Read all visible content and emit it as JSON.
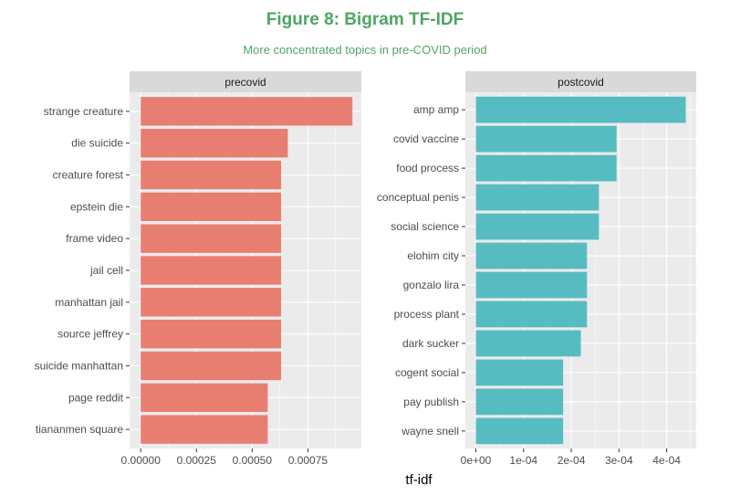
{
  "title": "Figure 8: Bigram TF-IDF",
  "subtitle": "More concentrated topics in pre-COVID period",
  "colors": {
    "title": "#4fa564",
    "panel_bg": "#ebebeb",
    "grid": "#ffffff",
    "strip_bg": "#d9d9d9"
  },
  "chart_data": {
    "type": "bar",
    "orientation": "horizontal",
    "xlabel": "tf-idf",
    "grid": true,
    "panels": [
      {
        "name": "precovid",
        "color": "#e87e72",
        "xlim": [
          -5e-05,
          0.00099
        ],
        "ticks": [
          0,
          0.00025,
          0.0005,
          0.00075
        ],
        "tick_labels": [
          "0.00000",
          "0.00025",
          "0.00050",
          "0.00075"
        ],
        "categories": [
          "strange creature",
          "die suicide",
          "creature forest",
          "epstein die",
          "frame video",
          "jail cell",
          "manhattan jail",
          "source jeffrey",
          "suicide manhattan",
          "page reddit",
          "tiananmen square"
        ],
        "values": [
          0.00095,
          0.00066,
          0.00063,
          0.00063,
          0.00063,
          0.00063,
          0.00063,
          0.00063,
          0.00063,
          0.00057,
          0.00057
        ]
      },
      {
        "name": "postcovid",
        "color": "#56bcc2",
        "xlim": [
          -2.2e-05,
          0.000462
        ],
        "ticks": [
          0,
          0.0001,
          0.0002,
          0.0003,
          0.0004
        ],
        "tick_labels": [
          "0e+00",
          "1e-04",
          "2e-04",
          "3e-04",
          "4e-04"
        ],
        "categories": [
          "amp amp",
          "covid vaccine",
          "food process",
          "conceptual penis",
          "social science",
          "elohim city",
          "gonzalo lira",
          "process plant",
          "dark sucker",
          "cogent social",
          "pay publish",
          "wayne snell"
        ],
        "values": [
          0.00044,
          0.000295,
          0.000295,
          0.000258,
          0.000258,
          0.000233,
          0.000233,
          0.000233,
          0.00022,
          0.000183,
          0.000183,
          0.000183
        ]
      }
    ]
  }
}
